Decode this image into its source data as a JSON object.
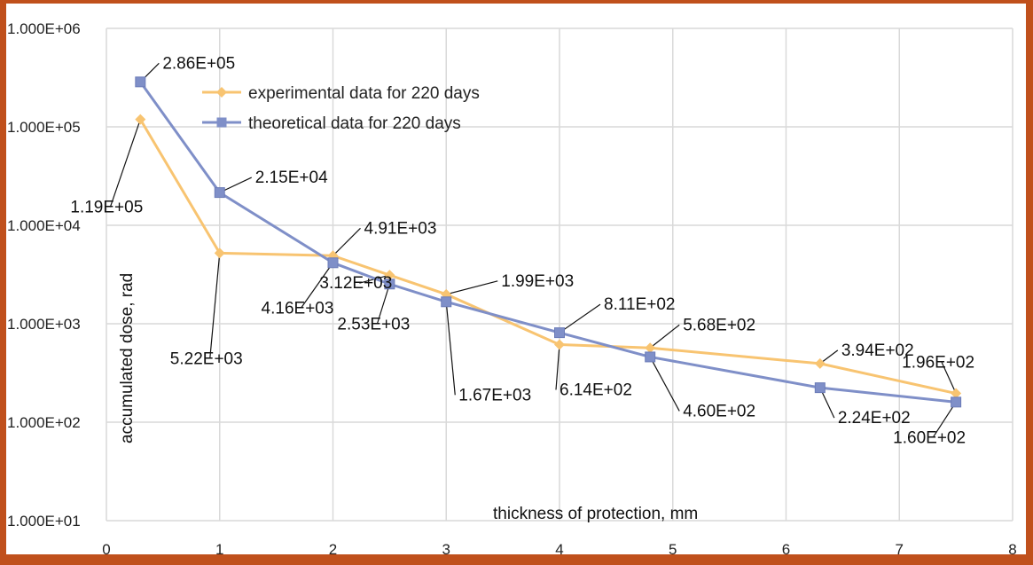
{
  "chart_data": {
    "type": "line",
    "title": "",
    "xlabel": "thickness of protection, mm",
    "ylabel": "accumulated dose, rad",
    "xlim": [
      0,
      8
    ],
    "ylim": [
      10,
      1000000
    ],
    "yscale": "log",
    "grid": true,
    "legend_position": "top-left",
    "x_ticks": [
      "0",
      "1",
      "2",
      "3",
      "4",
      "5",
      "6",
      "7",
      "8"
    ],
    "y_ticks": [
      "1.000E+01",
      "1.000E+02",
      "1.000E+03",
      "1.000E+04",
      "1.000E+05",
      "1.000E+06"
    ],
    "series": [
      {
        "name": "experimental data for 220 days",
        "color": "#f8c471",
        "marker": "diamond",
        "x": [
          0.3,
          1,
          2,
          2.5,
          3,
          4,
          4.8,
          6.3,
          7.5
        ],
        "y": [
          119000,
          5220,
          4910,
          3120,
          1990,
          614,
          568,
          394,
          196
        ],
        "labels": [
          "1.19E+05",
          "5.22E+03",
          "4.91E+03",
          "3.12E+03",
          "1.99E+03",
          "6.14E+02",
          "5.68E+02",
          "3.94E+02",
          "1.96E+02"
        ]
      },
      {
        "name": "theoretical data for 220 days",
        "color": "#7f8fc8",
        "marker": "square",
        "x": [
          0.3,
          1,
          2,
          2.5,
          3,
          4,
          4.8,
          6.3,
          7.5
        ],
        "y": [
          286000,
          21500,
          4160,
          2530,
          1670,
          811,
          460,
          224,
          160
        ],
        "labels": [
          "2.86E+05",
          "2.15E+04",
          "4.16E+03",
          "2.53E+03",
          "1.67E+03",
          "8.11E+02",
          "4.60E+02",
          "2.24E+02",
          "1.60E+02"
        ]
      }
    ]
  }
}
